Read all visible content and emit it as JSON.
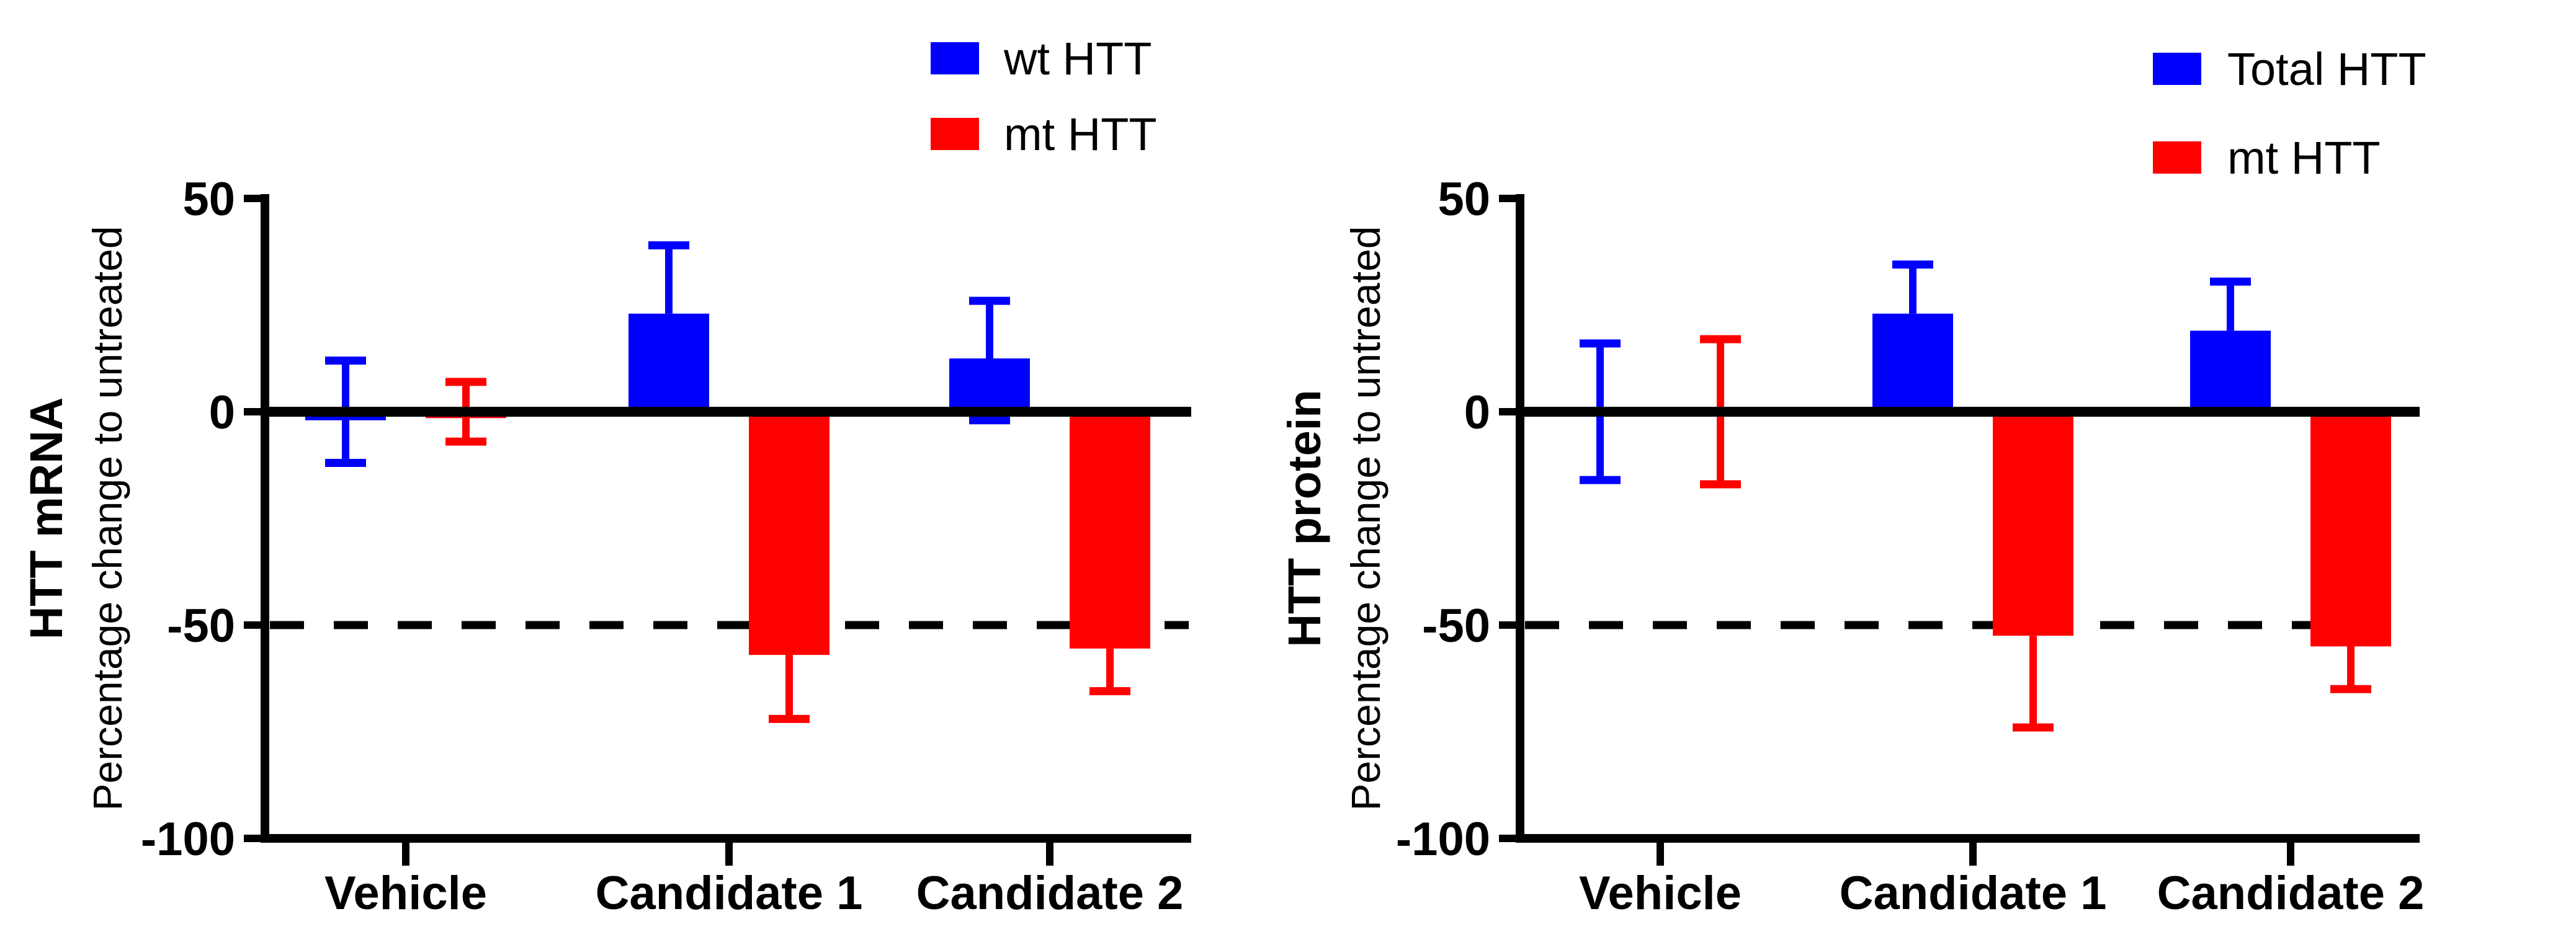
{
  "page": {
    "background": "#ffffff"
  },
  "colors": {
    "wt_series": "#0000ff",
    "mt_series": "#ff0000",
    "axis": "#000000"
  },
  "chart_data": [
    {
      "type": "bar",
      "panel": "left",
      "title": "HTT mRNA",
      "ylabel": "Percentage change to untreated",
      "ylim": [
        -100,
        50
      ],
      "yticks": [
        50,
        0,
        -50,
        -100
      ],
      "grid": false,
      "reference_line": {
        "y": -50,
        "style": "dashed",
        "color": "#000000"
      },
      "categories": [
        "Vehicle",
        "Candidate 1",
        "Candidate 2"
      ],
      "legend": {
        "position": "top-right",
        "entries": [
          {
            "label": "wt HTT",
            "color": "#0000ff"
          },
          {
            "label": "mt HTT",
            "color": "#ff0000"
          }
        ]
      },
      "series": [
        {
          "name": "wt HTT",
          "color": "#0000ff",
          "values": [
            -2,
            23,
            12.5
          ],
          "err_hi": [
            12,
            39,
            26
          ],
          "err_lo": [
            -12,
            null,
            -2
          ]
        },
        {
          "name": "mt HTT",
          "color": "#ff0000",
          "values": [
            -1.5,
            -57,
            -55.5
          ],
          "err_hi": [
            7,
            null,
            null
          ],
          "err_lo": [
            -7,
            -72,
            -65.5
          ]
        }
      ]
    },
    {
      "type": "bar",
      "panel": "right",
      "title": "HTT protein",
      "ylabel": "Percentage change to untreated",
      "ylim": [
        -100,
        50
      ],
      "yticks": [
        50,
        0,
        -50,
        -100
      ],
      "grid": false,
      "reference_line": {
        "y": -50,
        "style": "dashed",
        "color": "#000000"
      },
      "categories": [
        "Vehicle",
        "Candidate 1",
        "Candidate 2"
      ],
      "legend": {
        "position": "top-right",
        "entries": [
          {
            "label": "Total HTT",
            "color": "#0000ff"
          },
          {
            "label": "mt HTT",
            "color": "#ff0000"
          }
        ]
      },
      "series": [
        {
          "name": "Total HTT",
          "color": "#0000ff",
          "values": [
            0,
            23,
            19
          ],
          "err_hi": [
            16,
            34.5,
            30.5
          ],
          "err_lo": [
            -16,
            null,
            null
          ]
        },
        {
          "name": "mt HTT",
          "color": "#ff0000",
          "values": [
            0,
            -52.5,
            -55
          ],
          "err_hi": [
            17,
            null,
            null
          ],
          "err_lo": [
            -17,
            -74,
            -65
          ]
        }
      ]
    }
  ]
}
